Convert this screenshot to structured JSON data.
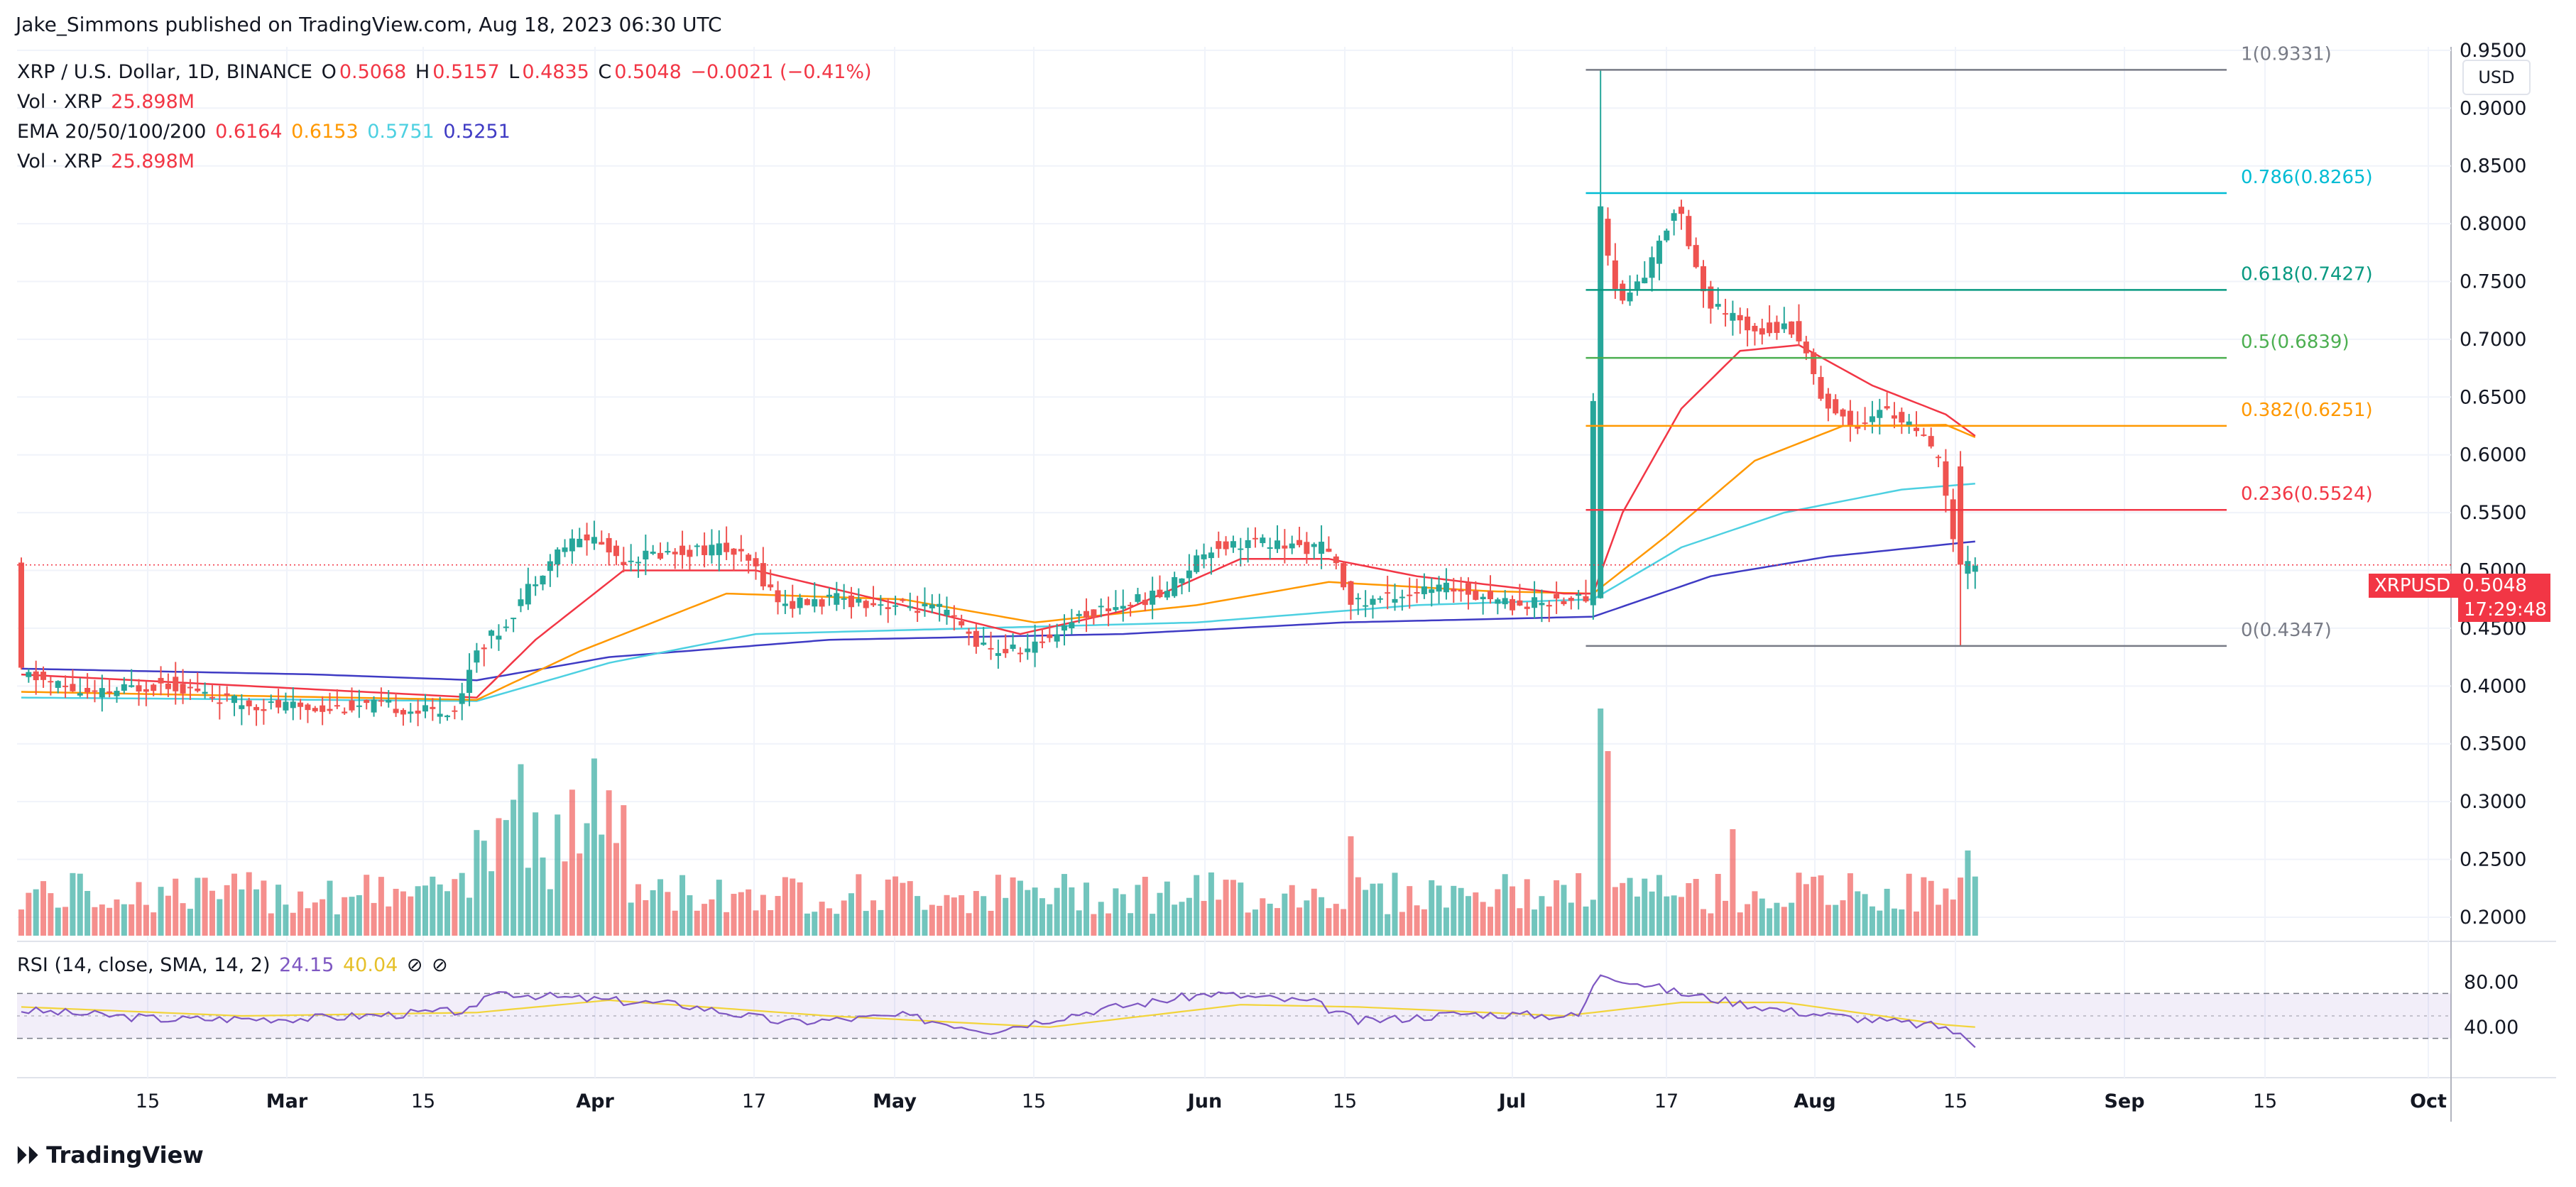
{
  "publisher": "Jake_Simmons published on TradingView.com, Aug 18, 2023 06:30 UTC",
  "legend": {
    "symbol": "XRP / U.S. Dollar, 1D, BINANCE",
    "ohlc": [
      {
        "k": "O",
        "v": "0.5068"
      },
      {
        "k": "H",
        "v": "0.5157"
      },
      {
        "k": "L",
        "v": "0.4835"
      },
      {
        "k": "C",
        "v": "0.5048"
      }
    ],
    "change": "−0.0021 (−0.41%)",
    "vol1_label": "Vol · XRP",
    "vol1_value": "25.898M",
    "ema_label": "EMA 20/50/100/200",
    "ema_values": [
      "0.6164",
      "0.6153",
      "0.5751",
      "0.5251"
    ],
    "vol2_label": "Vol · XRP",
    "vol2_value": "25.898M",
    "rsi_label": "RSI (14, close, SMA, 14, 2)",
    "rsi_value": "24.15",
    "rsi_sma": "40.04"
  },
  "currency_button": "USD",
  "price_label": {
    "symbol": "XRPUSD",
    "price": "0.5048",
    "countdown": "17:29:48"
  },
  "brand": "TradingView",
  "colors": {
    "up": "#26a69a",
    "down": "#ef5350",
    "ema20": "#f23645",
    "ema50": "#ff9800",
    "ema100": "#4dd0e1",
    "ema200": "#3f3bc4",
    "rsi": "#7e57c2",
    "rsi_sma": "#f2d43a"
  },
  "chart_data": {
    "type": "candlestick",
    "title": "XRP / U.S. Dollar, 1D, BINANCE",
    "y_ticks": [
      "0.9500",
      "0.9000",
      "0.8500",
      "0.8000",
      "0.7500",
      "0.7000",
      "0.6500",
      "0.6000",
      "0.5500",
      "0.5000",
      "0.4500",
      "0.4000",
      "0.3500",
      "0.3000",
      "0.2500",
      "0.2000"
    ],
    "ylim": [
      0.184,
      0.953
    ],
    "x_ticks": [
      "15",
      "Mar",
      "15",
      "Apr",
      "17",
      "May",
      "15",
      "Jun",
      "15",
      "Jul",
      "17",
      "Aug",
      "15",
      "Sep",
      "15",
      "Oct"
    ],
    "fibonacci": [
      {
        "label": "1(0.9331)",
        "value": 0.9331,
        "color": "#787b86"
      },
      {
        "label": "0.786(0.8265)",
        "value": 0.8265,
        "color": "#00bcd4"
      },
      {
        "label": "0.618(0.7427)",
        "value": 0.7427,
        "color": "#089981"
      },
      {
        "label": "0.5(0.6839)",
        "value": 0.6839,
        "color": "#4caf50"
      },
      {
        "label": "0.382(0.6251)",
        "value": 0.6251,
        "color": "#ff9800"
      },
      {
        "label": "0.236(0.5524)",
        "value": 0.5524,
        "color": "#f23645"
      },
      {
        "label": "0(0.4347)",
        "value": 0.4347,
        "color": "#787b86"
      }
    ],
    "price_path": [
      {
        "d": 0,
        "p": 0.412
      },
      {
        "d": 10,
        "p": 0.392
      },
      {
        "d": 20,
        "p": 0.403
      },
      {
        "d": 30,
        "p": 0.385
      },
      {
        "d": 40,
        "p": 0.381
      },
      {
        "d": 50,
        "p": 0.383
      },
      {
        "d": 55,
        "p": 0.378
      },
      {
        "d": 60,
        "p": 0.38
      },
      {
        "d": 62,
        "p": 0.43
      },
      {
        "d": 66,
        "p": 0.45
      },
      {
        "d": 70,
        "p": 0.49
      },
      {
        "d": 74,
        "p": 0.52
      },
      {
        "d": 78,
        "p": 0.53
      },
      {
        "d": 82,
        "p": 0.51
      },
      {
        "d": 88,
        "p": 0.515
      },
      {
        "d": 96,
        "p": 0.52
      },
      {
        "d": 100,
        "p": 0.505
      },
      {
        "d": 104,
        "p": 0.47
      },
      {
        "d": 112,
        "p": 0.475
      },
      {
        "d": 120,
        "p": 0.47
      },
      {
        "d": 126,
        "p": 0.465
      },
      {
        "d": 132,
        "p": 0.43
      },
      {
        "d": 138,
        "p": 0.432
      },
      {
        "d": 144,
        "p": 0.46
      },
      {
        "d": 150,
        "p": 0.47
      },
      {
        "d": 156,
        "p": 0.48
      },
      {
        "d": 162,
        "p": 0.52
      },
      {
        "d": 168,
        "p": 0.525
      },
      {
        "d": 174,
        "p": 0.52
      },
      {
        "d": 178,
        "p": 0.52
      },
      {
        "d": 182,
        "p": 0.47
      },
      {
        "d": 188,
        "p": 0.48
      },
      {
        "d": 196,
        "p": 0.485
      },
      {
        "d": 204,
        "p": 0.47
      },
      {
        "d": 210,
        "p": 0.475
      },
      {
        "d": 214,
        "p": 0.476
      },
      {
        "d": 215,
        "p": 0.815
      },
      {
        "d": 218,
        "p": 0.73
      },
      {
        "d": 222,
        "p": 0.76
      },
      {
        "d": 226,
        "p": 0.82
      },
      {
        "d": 230,
        "p": 0.73
      },
      {
        "d": 236,
        "p": 0.71
      },
      {
        "d": 242,
        "p": 0.71
      },
      {
        "d": 246,
        "p": 0.645
      },
      {
        "d": 250,
        "p": 0.625
      },
      {
        "d": 254,
        "p": 0.64
      },
      {
        "d": 258,
        "p": 0.625
      },
      {
        "d": 262,
        "p": 0.59
      },
      {
        "d": 264,
        "p": 0.5
      },
      {
        "d": 266,
        "p": 0.505
      }
    ],
    "ema20": [
      {
        "d": 0,
        "p": 0.41
      },
      {
        "d": 62,
        "p": 0.39
      },
      {
        "d": 70,
        "p": 0.44
      },
      {
        "d": 82,
        "p": 0.5
      },
      {
        "d": 100,
        "p": 0.5
      },
      {
        "d": 120,
        "p": 0.47
      },
      {
        "d": 136,
        "p": 0.445
      },
      {
        "d": 150,
        "p": 0.465
      },
      {
        "d": 166,
        "p": 0.51
      },
      {
        "d": 178,
        "p": 0.51
      },
      {
        "d": 190,
        "p": 0.495
      },
      {
        "d": 210,
        "p": 0.48
      },
      {
        "d": 214,
        "p": 0.48
      },
      {
        "d": 218,
        "p": 0.55
      },
      {
        "d": 226,
        "p": 0.64
      },
      {
        "d": 234,
        "p": 0.69
      },
      {
        "d": 242,
        "p": 0.695
      },
      {
        "d": 252,
        "p": 0.66
      },
      {
        "d": 262,
        "p": 0.635
      },
      {
        "d": 266,
        "p": 0.6164
      }
    ],
    "ema50": [
      {
        "d": 0,
        "p": 0.395
      },
      {
        "d": 62,
        "p": 0.388
      },
      {
        "d": 76,
        "p": 0.43
      },
      {
        "d": 96,
        "p": 0.48
      },
      {
        "d": 120,
        "p": 0.475
      },
      {
        "d": 138,
        "p": 0.455
      },
      {
        "d": 160,
        "p": 0.47
      },
      {
        "d": 178,
        "p": 0.49
      },
      {
        "d": 200,
        "p": 0.482
      },
      {
        "d": 214,
        "p": 0.48
      },
      {
        "d": 224,
        "p": 0.53
      },
      {
        "d": 236,
        "p": 0.595
      },
      {
        "d": 248,
        "p": 0.625
      },
      {
        "d": 262,
        "p": 0.626
      },
      {
        "d": 266,
        "p": 0.6153
      }
    ],
    "ema100": [
      {
        "d": 0,
        "p": 0.39
      },
      {
        "d": 62,
        "p": 0.387
      },
      {
        "d": 80,
        "p": 0.42
      },
      {
        "d": 100,
        "p": 0.445
      },
      {
        "d": 130,
        "p": 0.45
      },
      {
        "d": 160,
        "p": 0.455
      },
      {
        "d": 190,
        "p": 0.47
      },
      {
        "d": 214,
        "p": 0.475
      },
      {
        "d": 226,
        "p": 0.52
      },
      {
        "d": 240,
        "p": 0.55
      },
      {
        "d": 256,
        "p": 0.57
      },
      {
        "d": 266,
        "p": 0.5751
      }
    ],
    "ema200": [
      {
        "d": 0,
        "p": 0.415
      },
      {
        "d": 40,
        "p": 0.41
      },
      {
        "d": 62,
        "p": 0.405
      },
      {
        "d": 80,
        "p": 0.425
      },
      {
        "d": 110,
        "p": 0.44
      },
      {
        "d": 150,
        "p": 0.445
      },
      {
        "d": 180,
        "p": 0.455
      },
      {
        "d": 214,
        "p": 0.46
      },
      {
        "d": 230,
        "p": 0.495
      },
      {
        "d": 246,
        "p": 0.512
      },
      {
        "d": 266,
        "p": 0.5251
      }
    ],
    "volume": {
      "x_ticks_shared": true
    },
    "rsi": {
      "y_ticks": [
        "80.00",
        "40.00"
      ],
      "band": [
        30,
        70
      ],
      "values": [
        {
          "d": 0,
          "p": 55
        },
        {
          "d": 20,
          "p": 47
        },
        {
          "d": 40,
          "p": 48
        },
        {
          "d": 62,
          "p": 55
        },
        {
          "d": 64,
          "p": 72
        },
        {
          "d": 74,
          "p": 66
        },
        {
          "d": 90,
          "p": 60
        },
        {
          "d": 104,
          "p": 44
        },
        {
          "d": 120,
          "p": 50
        },
        {
          "d": 132,
          "p": 37
        },
        {
          "d": 146,
          "p": 55
        },
        {
          "d": 162,
          "p": 70
        },
        {
          "d": 176,
          "p": 62
        },
        {
          "d": 182,
          "p": 45
        },
        {
          "d": 196,
          "p": 52
        },
        {
          "d": 212,
          "p": 50
        },
        {
          "d": 215,
          "p": 88
        },
        {
          "d": 226,
          "p": 70
        },
        {
          "d": 240,
          "p": 55
        },
        {
          "d": 254,
          "p": 45
        },
        {
          "d": 262,
          "p": 40
        },
        {
          "d": 266,
          "p": 24.15
        }
      ],
      "sma": [
        {
          "d": 0,
          "p": 58
        },
        {
          "d": 30,
          "p": 50
        },
        {
          "d": 62,
          "p": 53
        },
        {
          "d": 80,
          "p": 64
        },
        {
          "d": 110,
          "p": 50
        },
        {
          "d": 140,
          "p": 40
        },
        {
          "d": 166,
          "p": 60
        },
        {
          "d": 182,
          "p": 58
        },
        {
          "d": 210,
          "p": 50
        },
        {
          "d": 226,
          "p": 62
        },
        {
          "d": 240,
          "p": 62
        },
        {
          "d": 262,
          "p": 42
        },
        {
          "d": 266,
          "p": 40.04
        }
      ]
    }
  }
}
